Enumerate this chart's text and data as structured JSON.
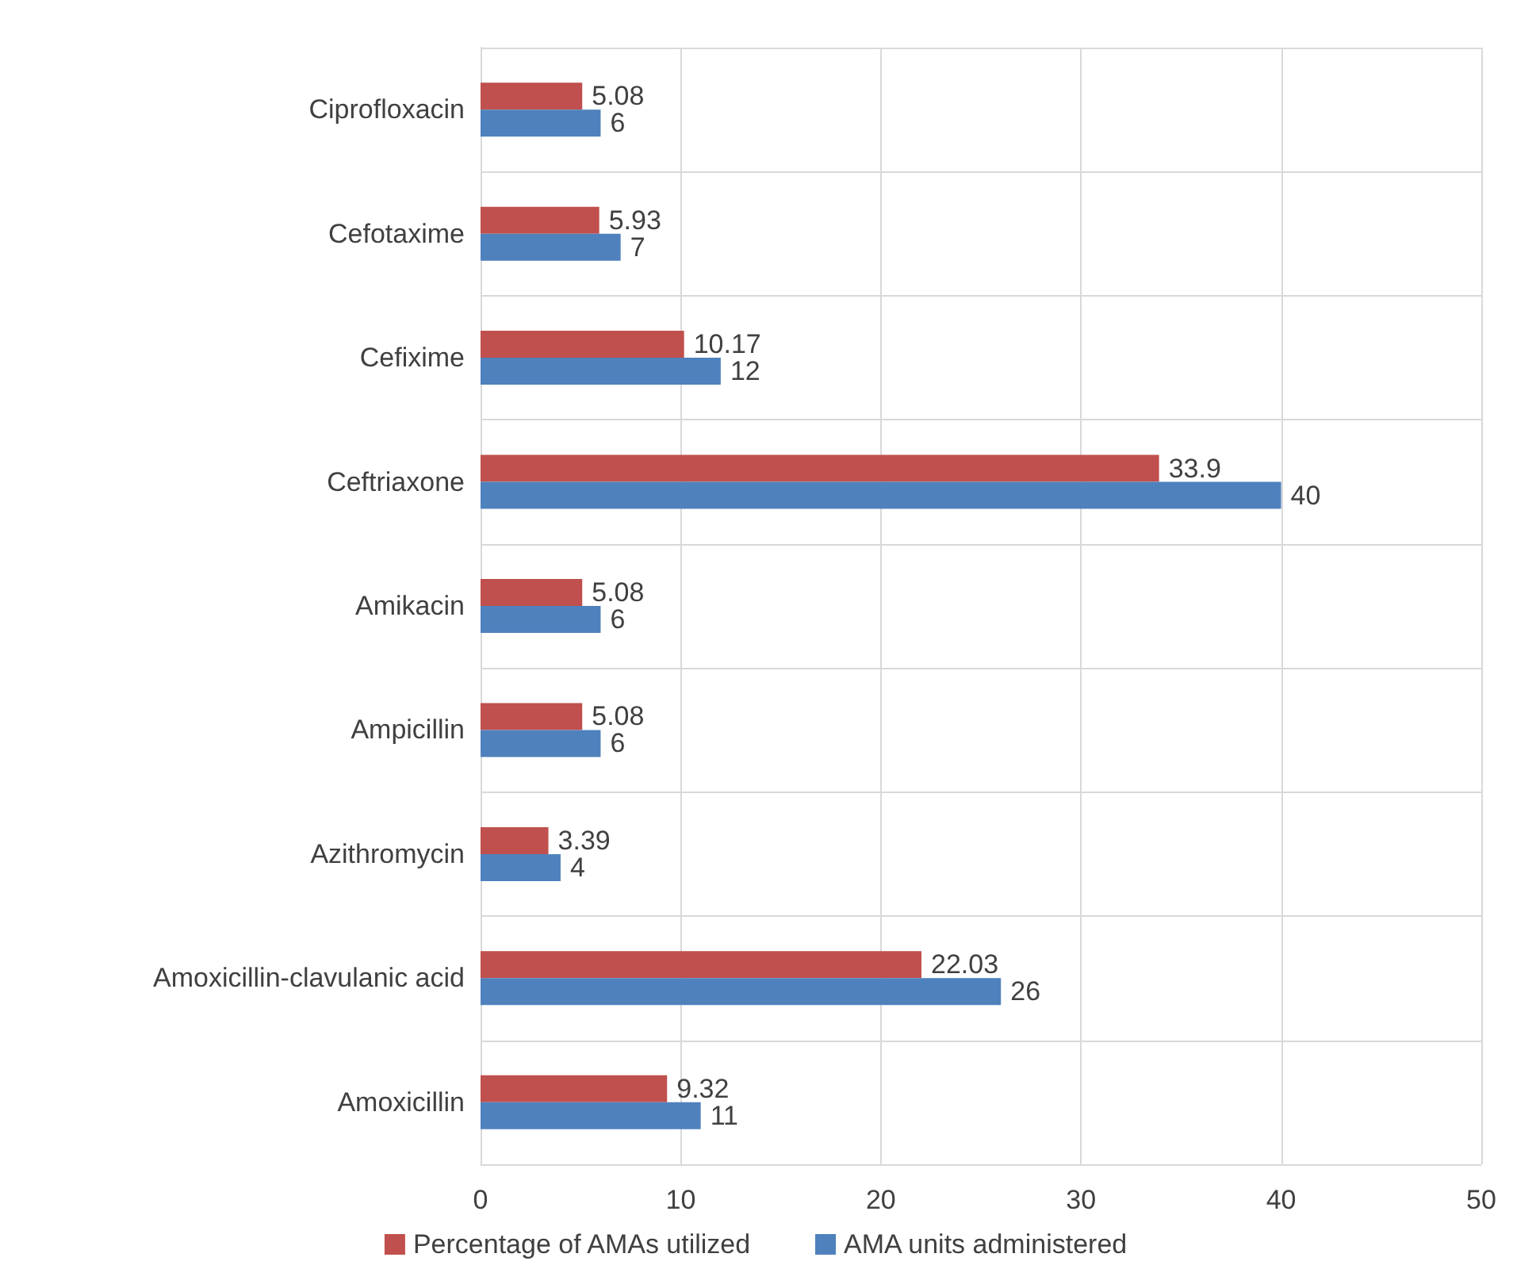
{
  "chart_data": {
    "type": "bar",
    "orientation": "horizontal",
    "categories": [
      "Ciprofloxacin",
      "Cefotaxime",
      "Cefixime",
      "Ceftriaxone",
      "Amikacin",
      "Ampicillin",
      "Azithromycin",
      "Amoxicillin-clavulanic acid",
      "Amoxicillin"
    ],
    "series": [
      {
        "name": "Percentage of AMAs utilized",
        "color": "#c0504d",
        "values": [
          5.08,
          5.93,
          10.17,
          33.9,
          5.08,
          5.08,
          3.39,
          22.03,
          9.32
        ]
      },
      {
        "name": "AMA units administered",
        "color": "#4f81bd",
        "values": [
          6,
          7,
          12,
          40,
          6,
          6,
          4,
          26,
          11
        ]
      }
    ],
    "xlim": [
      0,
      50
    ],
    "xticks": [
      0,
      10,
      20,
      30,
      40,
      50
    ],
    "grid": true,
    "legend": "bottom",
    "data_labels": true
  }
}
